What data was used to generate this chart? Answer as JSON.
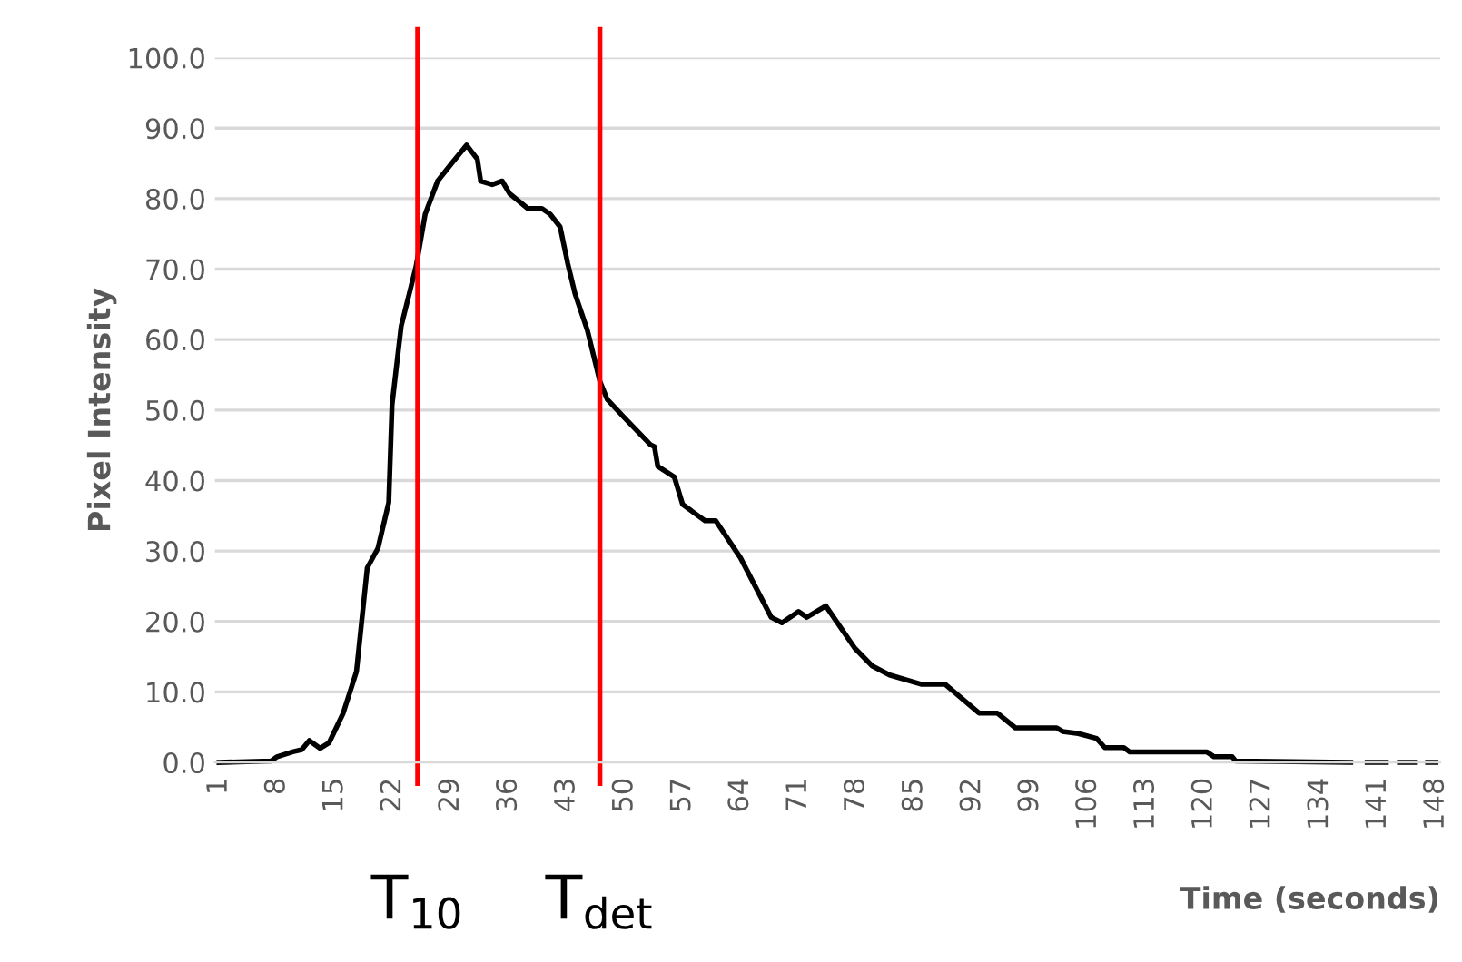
{
  "chart_data": {
    "type": "line",
    "xlabel": "Time (seconds)",
    "ylabel": "Pixel Intensity",
    "ylim": [
      0,
      100
    ],
    "yticks": [
      {
        "value": 0,
        "label": "0.0"
      },
      {
        "value": 10,
        "label": "10.0"
      },
      {
        "value": 20,
        "label": "20.0"
      },
      {
        "value": 30,
        "label": "30.0"
      },
      {
        "value": 40,
        "label": "40.0"
      },
      {
        "value": 50,
        "label": "50.0"
      },
      {
        "value": 60,
        "label": "60.0"
      },
      {
        "value": 70,
        "label": "70.0"
      },
      {
        "value": 80,
        "label": "80.0"
      },
      {
        "value": 90,
        "label": "90.0"
      },
      {
        "value": 100,
        "label": "100.0"
      }
    ],
    "xlim": [
      0.5,
      148.5
    ],
    "xticks": [
      1,
      8,
      15,
      22,
      29,
      36,
      43,
      50,
      57,
      64,
      71,
      78,
      85,
      92,
      99,
      106,
      113,
      120,
      127,
      134,
      141,
      148
    ],
    "grid": "y",
    "legend": false,
    "marker": "none",
    "line_style": "solid",
    "series": [
      {
        "color": "#000000",
        "x": [
          1,
          7.3,
          8,
          9.9,
          11,
          11.9,
          13.2,
          14.3,
          16,
          17.6,
          18.9,
          20.2,
          21.5,
          21.9,
          23,
          24.8,
          25.9,
          27.4,
          29.1,
          30.9,
          32.2,
          32.6,
          34,
          35.2,
          36.1,
          38.3,
          40,
          41,
          42.2,
          43.1,
          44,
          45.5,
          47,
          47.9,
          49.9,
          53.1,
          53.6,
          54,
          56,
          57,
          59.7,
          61,
          64,
          67.7,
          69,
          71,
          72,
          74.3,
          77.8,
          79.9,
          82,
          85.8,
          88.7,
          92.8,
          95,
          97.2,
          101,
          102.2,
          102.9,
          104.8,
          107,
          108,
          110.3,
          111,
          120.3,
          121.2,
          123.4,
          123.8,
          137.7,
          139,
          139.7,
          142,
          143,
          143.6,
          145.4,
          146,
          147,
          148
        ],
        "values": [
          0,
          0.2,
          0.8,
          1.5,
          1.8,
          3.1,
          2,
          2.8,
          7,
          12.9,
          27.6,
          30.4,
          36.9,
          50.8,
          61.9,
          70.4,
          77.8,
          82.5,
          85,
          87.6,
          85.6,
          82.5,
          82,
          82.5,
          80.7,
          78.6,
          78.6,
          77.8,
          76,
          70.9,
          66.5,
          61.3,
          54.1,
          51.5,
          49,
          45.1,
          44.8,
          42,
          40.5,
          36.6,
          34.3,
          34.3,
          29,
          20.6,
          19.8,
          21.4,
          20.6,
          22.2,
          16.2,
          13.7,
          12.4,
          11.1,
          11.1,
          7,
          7,
          4.9,
          4.9,
          4.9,
          4.4,
          4.1,
          3.4,
          2.1,
          2.1,
          1.5,
          1.5,
          0.8,
          0.8,
          0.2,
          0,
          null,
          0,
          0,
          null,
          0,
          0,
          null,
          0,
          0
        ]
      }
    ],
    "ref_lines": [
      {
        "axis": "x",
        "value": 25,
        "label": "T$_{10}$",
        "color": "#ff0000"
      },
      {
        "axis": "x",
        "value": 47,
        "label": "T$_{det}$",
        "color": "#ff0000"
      }
    ]
  }
}
